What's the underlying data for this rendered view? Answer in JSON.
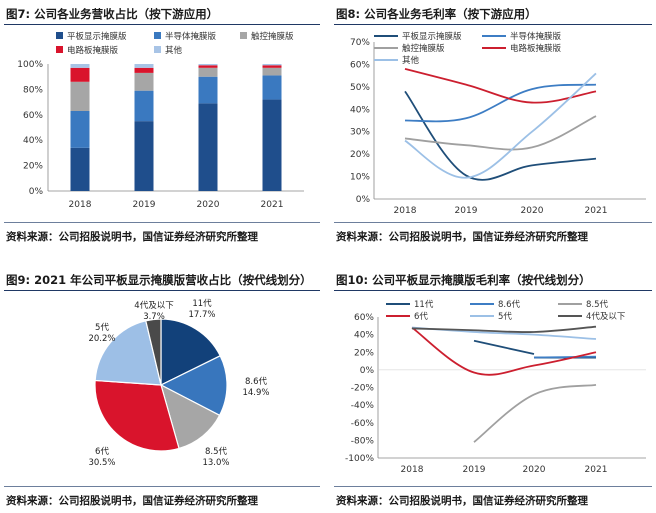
{
  "panel1": {
    "title": "图7: 公司各业务营收占比（按下游应用）",
    "source": "资料来源：公司招股说明书，国信证券经济研究所整理"
  },
  "panel2": {
    "title": "图8: 公司各业务毛利率（按下游应用）",
    "source": "资料来源：公司招股说明书，国信证券经济研究所整理"
  },
  "panel3": {
    "title": "图9: 2021 年公司平板显示掩膜版营收占比（按代线划分）",
    "source": "资料来源：公司招股说明书，国信证券经济研究所整理"
  },
  "panel4": {
    "title": "图10: 公司平板显示掩膜版毛利率（按代线划分）",
    "source": "资料来源：公司招股说明书，国信证券经济研究所整理"
  },
  "chart_data": [
    {
      "id": "c1",
      "type": "bar",
      "stacked": true,
      "categories": [
        "2018",
        "2019",
        "2020",
        "2021"
      ],
      "ylim": [
        0,
        100
      ],
      "yticks": [
        "0%",
        "20%",
        "40%",
        "60%",
        "80%",
        "100%"
      ],
      "series": [
        {
          "name": "平板显示掩膜版",
          "color": "#1f4e8c",
          "values": [
            34,
            55,
            69,
            72
          ]
        },
        {
          "name": "半导体掩膜版",
          "color": "#3a79c0",
          "values": [
            29,
            24,
            21,
            19
          ]
        },
        {
          "name": "触控掩膜版",
          "color": "#a6a6a6",
          "values": [
            23,
            14,
            7,
            6
          ]
        },
        {
          "name": "电路板掩膜版",
          "color": "#d9142c",
          "values": [
            11,
            4,
            2,
            2
          ]
        },
        {
          "name": "其他",
          "color": "#a8c4e6",
          "values": [
            3,
            3,
            1,
            1
          ]
        }
      ]
    },
    {
      "id": "c2",
      "type": "line",
      "categories": [
        "2018",
        "2019",
        "2020",
        "2021"
      ],
      "ylim": [
        0,
        70
      ],
      "yticks": [
        "0%",
        "10%",
        "20%",
        "30%",
        "40%",
        "50%",
        "60%",
        "70%"
      ],
      "series": [
        {
          "name": "平板显示掩膜版",
          "color": "#1f4e79",
          "values": [
            48,
            10.5,
            15,
            18
          ]
        },
        {
          "name": "半导体掩膜版",
          "color": "#3d7dc4",
          "values": [
            35,
            36,
            49,
            51
          ]
        },
        {
          "name": "触控掩膜版",
          "color": "#a0a0a0",
          "values": [
            27,
            24,
            23,
            37
          ]
        },
        {
          "name": "电路板掩膜版",
          "color": "#cc1f2f",
          "values": [
            58,
            51,
            43,
            48
          ]
        },
        {
          "name": "其他",
          "color": "#9cc0e6",
          "values": [
            26,
            9.5,
            30,
            56
          ]
        }
      ]
    },
    {
      "id": "c3",
      "type": "pie",
      "slices": [
        {
          "name": "11代",
          "value": 17.7,
          "label": "17.7%",
          "color": "#12417a"
        },
        {
          "name": "8.6代",
          "value": 14.9,
          "label": "14.9%",
          "color": "#3876bd"
        },
        {
          "name": "8.5代",
          "value": 13.0,
          "label": "13.0%",
          "color": "#a6a6a6"
        },
        {
          "name": "6代",
          "value": 30.5,
          "label": "30.5%",
          "color": "#d9142c"
        },
        {
          "name": "5代",
          "value": 20.2,
          "label": "20.2%",
          "color": "#9dbfe6"
        },
        {
          "name": "4代及以下",
          "value": 3.7,
          "label": "3.7%",
          "color": "#4a4a4a"
        }
      ]
    },
    {
      "id": "c4",
      "type": "line",
      "categories": [
        "2018",
        "2019",
        "2020",
        "2021"
      ],
      "ylim": [
        -100,
        60
      ],
      "yticks": [
        "-100%",
        "-80%",
        "-60%",
        "-40%",
        "-20%",
        "0%",
        "20%",
        "40%",
        "60%"
      ],
      "series": [
        {
          "name": "11代",
          "color": "#1f4e79",
          "values": [
            null,
            null,
            14,
            14
          ]
        },
        {
          "name": "8.6代",
          "color": "#3d7dc4",
          "values": [
            null,
            null,
            14,
            15
          ]
        },
        {
          "name": "8.5代",
          "color": "#a0a0a0",
          "values": [
            null,
            -82,
            -28,
            -17
          ]
        },
        {
          "name": "6代",
          "color": "#cc1f2f",
          "values": [
            48,
            -3,
            5,
            20
          ]
        },
        {
          "name": "5代",
          "color": "#9cc0e6",
          "values": [
            48,
            43,
            40,
            35
          ]
        },
        {
          "name": "4代及以下",
          "color": "#555555",
          "values": [
            47,
            45,
            43,
            49
          ]
        },
        {
          "name": "",
          "color": "#1f4e79",
          "values": [
            null,
            33,
            18,
            null
          ]
        }
      ]
    }
  ]
}
